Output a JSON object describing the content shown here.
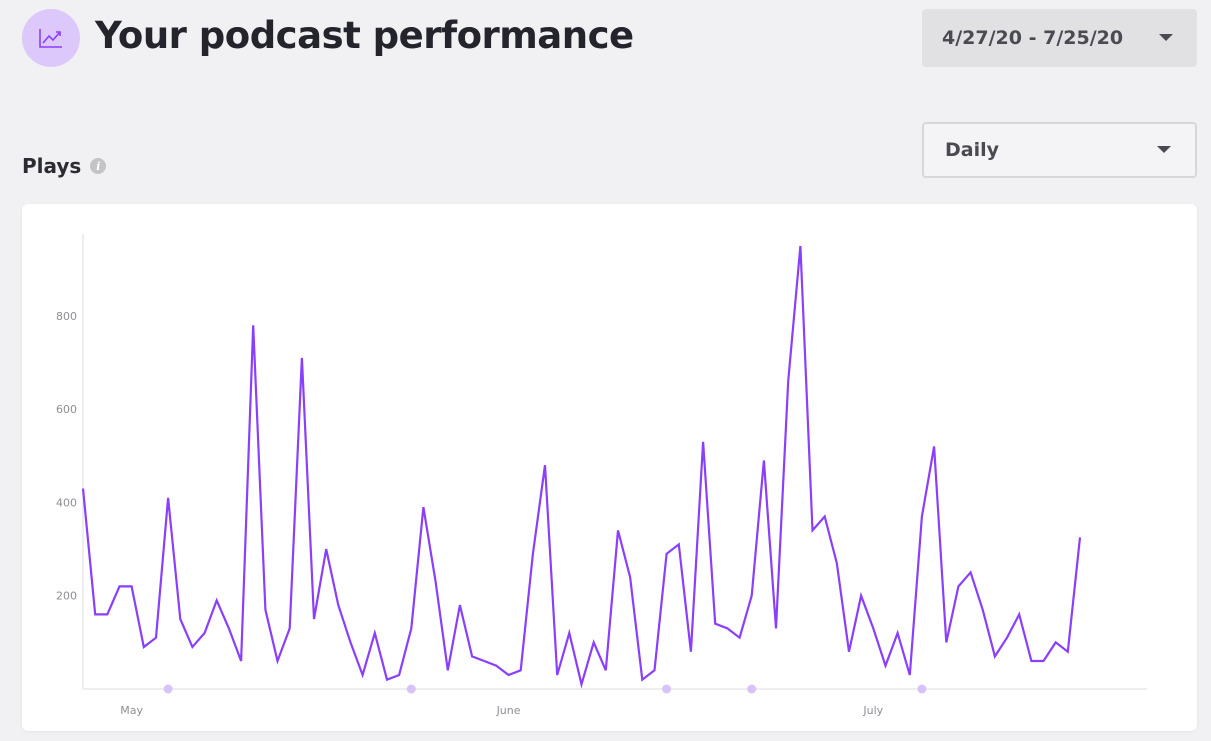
{
  "header": {
    "title": "Your podcast performance",
    "icon": "line-chart-icon",
    "date_range": "4/27/20 - 7/25/20"
  },
  "plays": {
    "title": "Plays",
    "info_icon": "info-icon",
    "interval": "Daily"
  },
  "colors": {
    "accent": "#8a3ffc",
    "accent_light": "#d9c2fb",
    "background": "#f1f1f3"
  },
  "chart_data": {
    "type": "line",
    "title": "",
    "xlabel": "",
    "ylabel": "",
    "ylim": [
      0,
      980
    ],
    "y_ticks": [
      200,
      400,
      600,
      800
    ],
    "grid": false,
    "x_start_date": "2020-04-27",
    "x_tick_labels": [
      {
        "label": "May",
        "day_index": 4
      },
      {
        "label": "June",
        "day_index": 35
      },
      {
        "label": "July",
        "day_index": 65
      }
    ],
    "series": [
      {
        "name": "",
        "values": [
          430,
          160,
          160,
          220,
          220,
          90,
          110,
          410,
          150,
          90,
          120,
          190,
          130,
          60,
          780,
          170,
          60,
          130,
          710,
          150,
          300,
          180,
          100,
          30,
          120,
          20,
          30,
          130,
          390,
          230,
          40,
          180,
          70,
          60,
          50,
          30,
          40,
          290,
          480,
          30,
          120,
          10,
          100,
          40,
          340,
          240,
          20,
          40,
          290,
          310,
          80,
          530,
          140,
          130,
          110,
          200,
          490,
          130,
          660,
          950,
          340,
          370,
          270,
          80,
          200,
          130,
          50,
          120,
          30,
          370,
          520,
          100,
          220,
          250,
          170,
          70,
          110,
          160,
          60,
          60,
          100,
          80,
          325
        ]
      }
    ],
    "event_markers_day_index": [
      7,
      27,
      48,
      55,
      69
    ]
  }
}
